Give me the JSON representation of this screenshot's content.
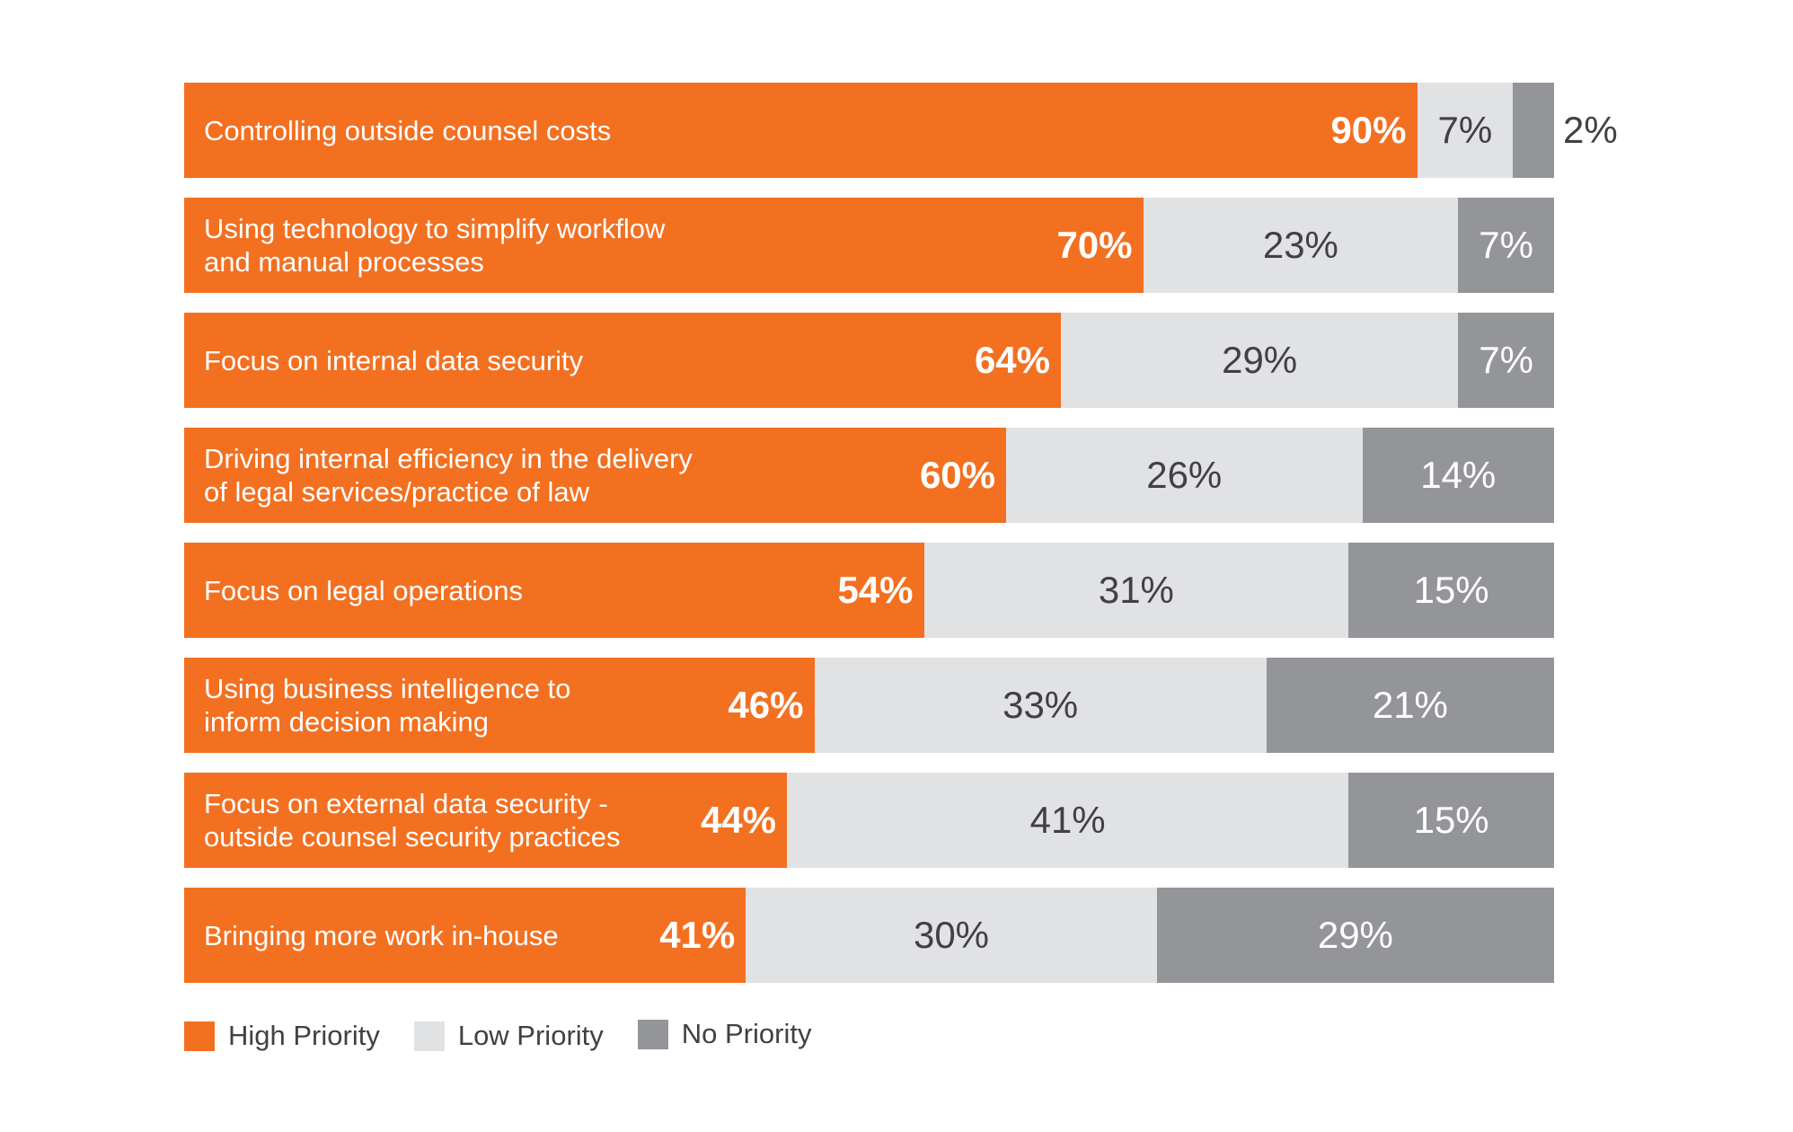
{
  "chart_data": {
    "type": "bar",
    "orientation": "horizontal-stacked-100",
    "categories": [
      "Controlling outside counsel costs",
      "Using technology to simplify workflow\nand manual processes",
      "Focus on internal data security",
      "Driving internal efficiency in the delivery\nof legal services/practice of law",
      "Focus on legal operations",
      "Using business intelligence to\ninform decision making",
      "Focus on external data security -\noutside counsel security practices",
      "Bringing more work in-house"
    ],
    "series": [
      {
        "name": "High Priority",
        "color": "#f37021",
        "values": [
          90,
          70,
          64,
          60,
          54,
          46,
          44,
          41
        ]
      },
      {
        "name": "Low Priority",
        "color": "#e1e2e4",
        "values": [
          7,
          23,
          29,
          26,
          31,
          33,
          41,
          30
        ]
      },
      {
        "name": "No Priority",
        "color": "#949598",
        "values": [
          2,
          7,
          7,
          14,
          15,
          21,
          15,
          29
        ]
      }
    ],
    "value_suffix": "%",
    "legend_position": "bottom-left",
    "grid": false
  }
}
